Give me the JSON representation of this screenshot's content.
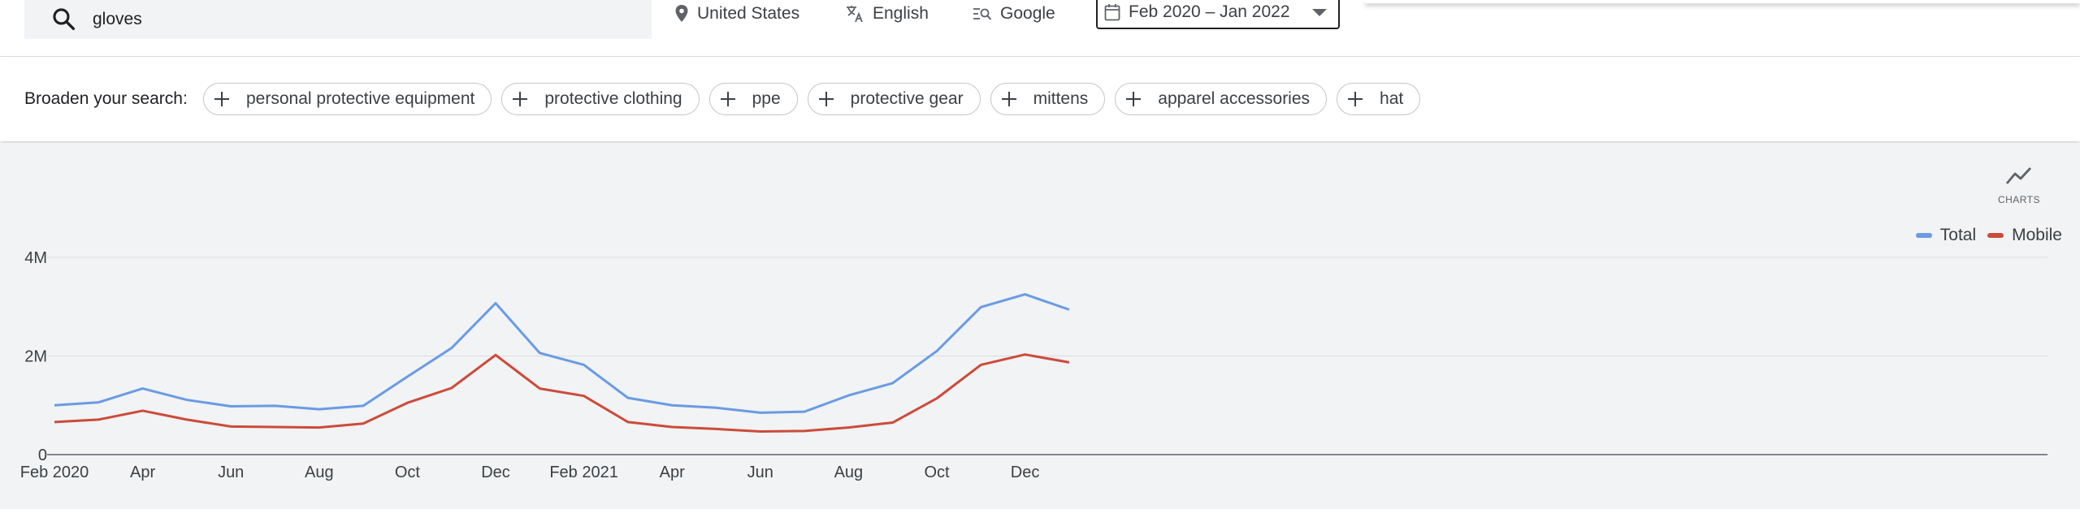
{
  "search": {
    "query": "gloves"
  },
  "filters": {
    "location": "United States",
    "language": "English",
    "source": "Google",
    "date_range": "Feb 2020 – Jan 2022"
  },
  "broaden": {
    "label": "Broaden your search:",
    "chips": [
      "personal protective equipment",
      "protective clothing",
      "ppe",
      "protective gear",
      "mittens",
      "apparel accessories",
      "hat"
    ]
  },
  "charts_button": {
    "label": "CHARTS",
    "icon": "trending-line-icon"
  },
  "colors": {
    "total": "#6a9be3",
    "mobile": "#cc4b3a",
    "accent": "#1a73e8"
  },
  "chart_data": {
    "type": "line",
    "x": [
      "Feb 2020",
      "Mar 2020",
      "Apr 2020",
      "May 2020",
      "Jun 2020",
      "Jul 2020",
      "Aug 2020",
      "Sep 2020",
      "Oct 2020",
      "Nov 2020",
      "Dec 2020",
      "Jan 2021",
      "Feb 2021",
      "Mar 2021",
      "Apr 2021",
      "May 2021",
      "Jun 2021",
      "Jul 2021",
      "Aug 2021",
      "Sep 2021",
      "Oct 2021",
      "Nov 2021",
      "Dec 2021",
      "Jan 2022"
    ],
    "x_tick_labels": [
      "Feb 2020",
      "Apr",
      "Jun",
      "Aug",
      "Oct",
      "Dec",
      "Feb 2021",
      "Apr",
      "Jun",
      "Aug",
      "Oct",
      "Dec"
    ],
    "y_tick_labels": [
      "0",
      "2M",
      "4M"
    ],
    "ylim": [
      0,
      4000000
    ],
    "grid": true,
    "legend_position": "top-right",
    "series": [
      {
        "name": "Total",
        "color": "#6a9be3",
        "values": [
          1000000,
          1060000,
          1340000,
          1110000,
          980000,
          990000,
          920000,
          990000,
          1580000,
          2160000,
          3070000,
          2060000,
          1820000,
          1150000,
          1000000,
          950000,
          850000,
          870000,
          1200000,
          1450000,
          2100000,
          2990000,
          3250000,
          2940000
        ]
      },
      {
        "name": "Mobile",
        "color": "#cc4b3a",
        "values": [
          660000,
          710000,
          890000,
          710000,
          570000,
          560000,
          550000,
          630000,
          1050000,
          1350000,
          2020000,
          1340000,
          1190000,
          660000,
          560000,
          520000,
          470000,
          480000,
          550000,
          650000,
          1140000,
          1820000,
          2030000,
          1870000
        ]
      }
    ]
  }
}
